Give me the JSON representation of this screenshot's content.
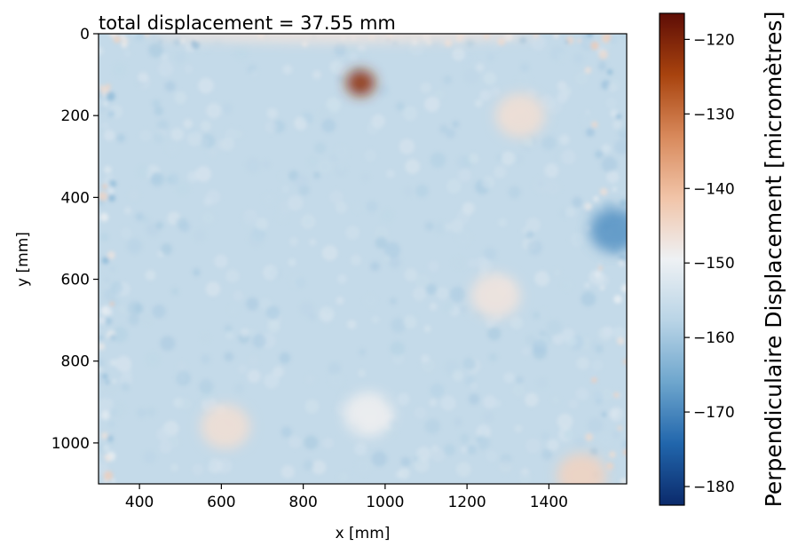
{
  "chart_data": {
    "type": "heatmap",
    "title": "total displacement = 37.55 mm",
    "xlabel": "x [mm]",
    "ylabel": "y [mm]",
    "xlim": [
      300,
      1590
    ],
    "ylim": [
      1100,
      0
    ],
    "xticks": [
      400,
      600,
      800,
      1000,
      1200,
      1400
    ],
    "yticks": [
      0,
      200,
      400,
      600,
      800,
      1000
    ],
    "colorbar": {
      "label": "Perpendiculaire Displacement  [micromètres]",
      "range": [
        -182.5,
        -116.5
      ],
      "ticks": [
        -120,
        -130,
        -140,
        -150,
        -160,
        -170,
        -180
      ],
      "colormap": "diverging blue-white-brown",
      "stops": [
        "#0b2a6b",
        "#2166ac",
        "#6ea6cd",
        "#b9d4e6",
        "#eef1f4",
        "#f1c4a8",
        "#d8895b",
        "#a8430e",
        "#5e0d06"
      ]
    },
    "grid": false,
    "field": {
      "baseline": -156,
      "features": [
        {
          "label": "hot spot",
          "x": 940,
          "y": 120,
          "value": -122
        },
        {
          "label": "warm patch",
          "x": 1270,
          "y": 640,
          "value": -147
        },
        {
          "label": "warm patch",
          "x": 1330,
          "y": 200,
          "value": -146
        },
        {
          "label": "warm patch",
          "x": 960,
          "y": 930,
          "value": -149
        },
        {
          "label": "warm patch",
          "x": 610,
          "y": 960,
          "value": -146
        },
        {
          "label": "warm edge",
          "x": 900,
          "y": 0,
          "value": -147
        },
        {
          "label": "warm corner",
          "x": 1480,
          "y": 1080,
          "value": -144
        },
        {
          "label": "cool spot",
          "x": 1560,
          "y": 480,
          "value": -168
        }
      ]
    }
  }
}
